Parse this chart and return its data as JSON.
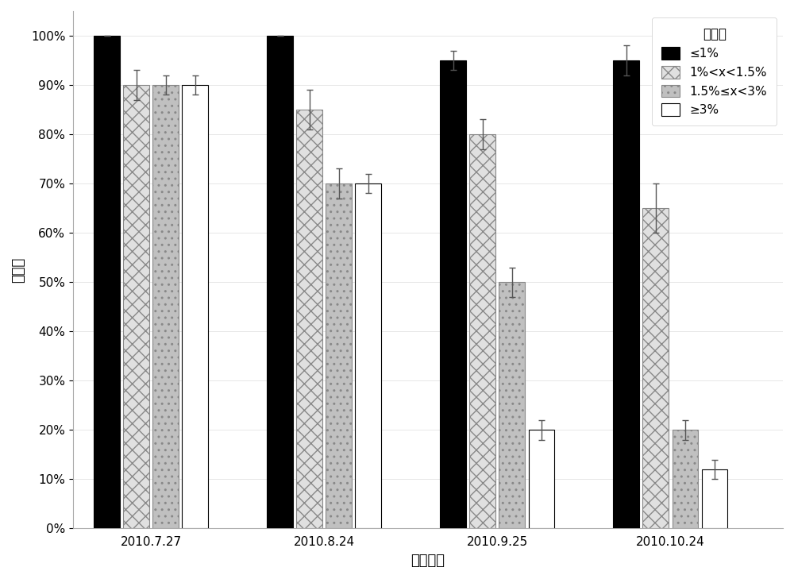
{
  "groups": [
    "2010.7.27",
    "2010.8.24",
    "2010.9.25",
    "2010.10.24"
  ],
  "series": [
    {
      "label": "≤1%",
      "values": [
        1.0,
        1.0,
        0.95,
        0.95
      ],
      "errors": [
        0.0,
        0.0,
        0.02,
        0.03
      ],
      "color": "#000000",
      "hatch": "",
      "edgecolor": "#000000"
    },
    {
      "label": "1%<x<1.5%",
      "values": [
        0.9,
        0.85,
        0.8,
        0.65
      ],
      "errors": [
        0.03,
        0.04,
        0.03,
        0.05
      ],
      "color": "#e0e0e0",
      "hatch": "xx",
      "edgecolor": "#888888"
    },
    {
      "label": "1.5%≤x<3%",
      "values": [
        0.9,
        0.7,
        0.5,
        0.2
      ],
      "errors": [
        0.02,
        0.03,
        0.03,
        0.02
      ],
      "color": "#c0c0c0",
      "hatch": "..",
      "edgecolor": "#888888"
    },
    {
      "label": "≥3%",
      "values": [
        0.9,
        0.7,
        0.2,
        0.12
      ],
      "errors": [
        0.02,
        0.02,
        0.02,
        0.02
      ],
      "color": "#ffffff",
      "hatch": "",
      "edgecolor": "#000000"
    }
  ],
  "ylabel": "存活率",
  "xlabel": "统计时间",
  "legend_title": "含盐量",
  "ylim": [
    0,
    1.05
  ],
  "bar_width": 0.15,
  "group_centers": [
    0.3,
    1.3,
    2.3,
    3.3
  ],
  "xlim": [
    -0.15,
    3.95
  ],
  "figsize": [
    10.0,
    7.29
  ],
  "dpi": 100,
  "background_color": "#ffffff",
  "axis_fontsize": 13,
  "tick_fontsize": 11,
  "legend_fontsize": 11
}
